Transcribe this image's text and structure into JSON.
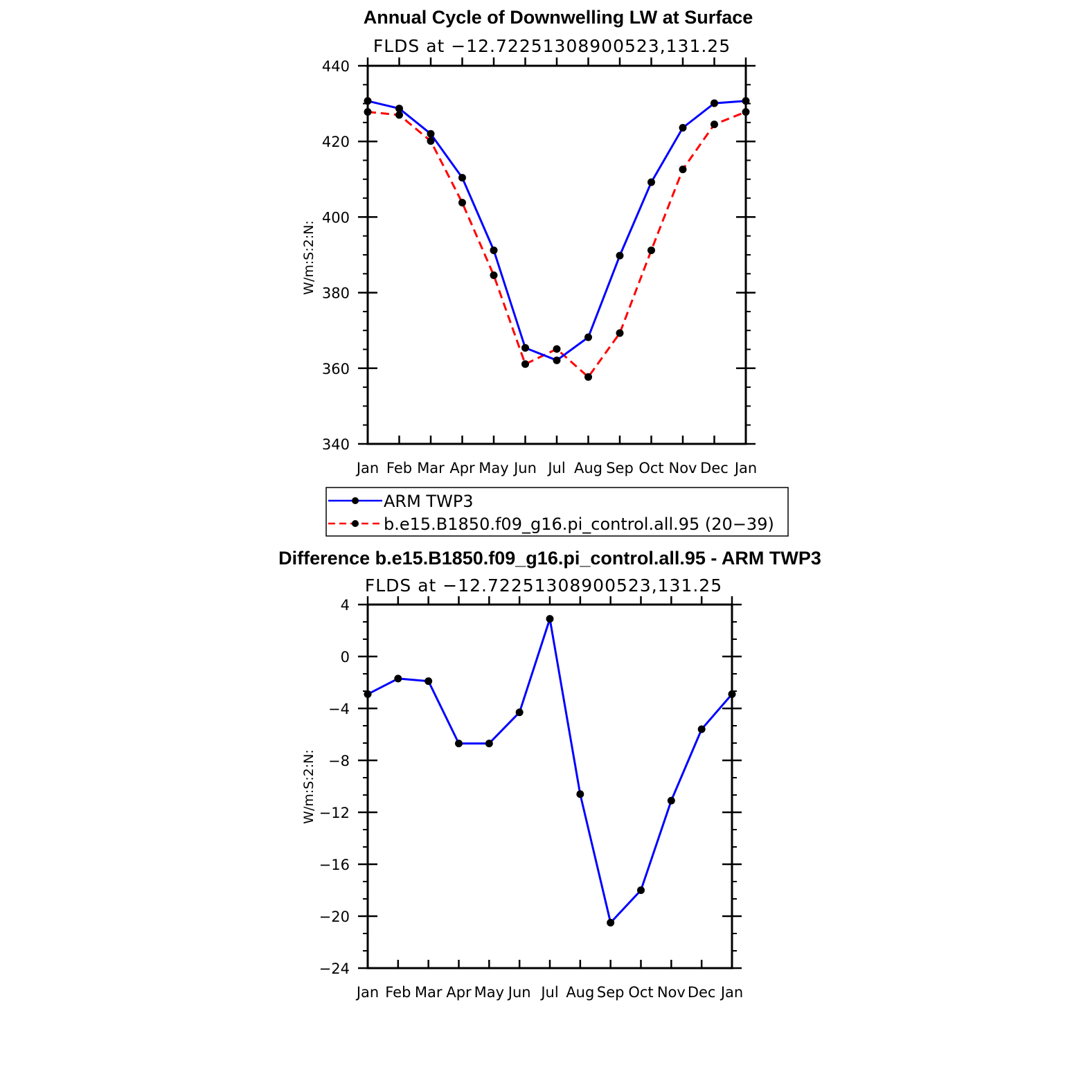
{
  "chart_data": [
    {
      "type": "line",
      "title": "Annual Cycle of Downwelling LW at Surface",
      "subtitle": "FLDS at −12.72251308900523,131.25",
      "ylabel": "W/m:S:2:N:",
      "xlabel": "",
      "ylim": [
        340,
        440
      ],
      "yticks": [
        "440",
        "420",
        "400",
        "380",
        "360",
        "340"
      ],
      "categories": [
        "Jan",
        "Feb",
        "Mar",
        "Apr",
        "May",
        "Jun",
        "Jul",
        "Aug",
        "Sep",
        "Oct",
        "Nov",
        "Dec",
        "Jan"
      ],
      "series": [
        {
          "name": "ARM TWP3",
          "color": "#0000ff",
          "dash": "solid",
          "values": [
            430.7,
            428.7,
            422.0,
            410.4,
            391.2,
            365.4,
            362.1,
            368.2,
            389.8,
            409.2,
            423.6,
            430.1,
            430.7
          ]
        },
        {
          "name": "b.e15.B1850.f09_g16.pi_control.all.95 (20−39)",
          "color": "#ff0000",
          "dash": "dashed",
          "values": [
            427.8,
            427.0,
            420.1,
            403.8,
            384.6,
            361.1,
            365.1,
            357.7,
            369.3,
            391.2,
            412.6,
            424.5,
            427.8
          ]
        }
      ]
    },
    {
      "type": "line",
      "title": "Difference b.e15.B1850.f09_g16.pi_control.all.95 - ARM TWP3",
      "subtitle": "FLDS at −12.72251308900523,131.25",
      "ylabel": "W/m:S:2:N:",
      "xlabel": "",
      "ylim": [
        -24,
        4
      ],
      "yticks": [
        "4",
        "0",
        "−4",
        "−8",
        "−12",
        "−16",
        "−20",
        "−24"
      ],
      "categories": [
        "Jan",
        "Feb",
        "Mar",
        "Apr",
        "May",
        "Jun",
        "Jul",
        "Aug",
        "Sep",
        "Oct",
        "Nov",
        "Dec",
        "Jan"
      ],
      "series": [
        {
          "name": "Difference",
          "color": "#0000ff",
          "dash": "solid",
          "values": [
            -2.9,
            -1.7,
            -1.9,
            -6.7,
            -6.7,
            -4.3,
            2.9,
            -10.6,
            -20.5,
            -18.0,
            -11.1,
            -5.6,
            -2.9
          ]
        }
      ]
    }
  ]
}
